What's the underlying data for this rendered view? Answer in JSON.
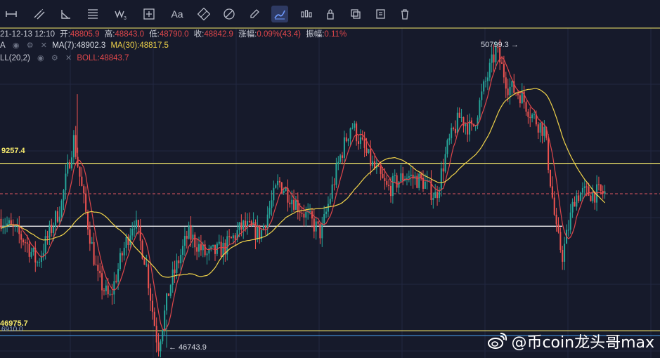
{
  "toolbar": {
    "tools": [
      {
        "name": "horizontal-line-tool-icon"
      },
      {
        "name": "parallel-channel-tool-icon"
      },
      {
        "name": "angle-tool-icon"
      },
      {
        "name": "fibonacci-tool-icon"
      },
      {
        "name": "wave-tool-icon",
        "label": "W3"
      },
      {
        "name": "crosshair-tool-icon"
      },
      {
        "name": "text-tool-icon",
        "label": "Aa"
      },
      {
        "name": "ruler-tool-icon"
      },
      {
        "name": "measure-tool-icon"
      },
      {
        "name": "pencil-tool-icon"
      },
      {
        "name": "brush-tool-icon"
      },
      {
        "name": "candles-tool-icon"
      },
      {
        "name": "lock-tool-icon"
      },
      {
        "name": "copy-tool-icon"
      },
      {
        "name": "edit-tool-icon"
      },
      {
        "name": "trash-tool-icon"
      }
    ]
  },
  "legend": {
    "datetime": "21-12-13 12:10",
    "open_label": "开:",
    "open": "48805.9",
    "high_label": "高:",
    "high": "48843.0",
    "low_label": "低:",
    "low": "48790.0",
    "close_label": "收:",
    "close": "48842.9",
    "change_label": "涨幅:",
    "change": "0.09%(43.4)",
    "amplitude_label": "振幅:",
    "amplitude": "0.11%",
    "ma_prefix": "A",
    "ma7": "MA(7):48902.3",
    "ma30": "MA(30):48817.5",
    "boll_name": "LL(20,2)",
    "boll": "BOLL:48843.7"
  },
  "annotations": {
    "high_marker": "50799.3 →",
    "low_marker": "← 46743.9",
    "level_upper": "9257.4",
    "level_lower": "46975.7",
    "level_lower_sub": "6910.0"
  },
  "watermark": {
    "text": "@币coin龙头哥max"
  },
  "colors": {
    "background": "#161a2b",
    "up": "#26a69a",
    "down": "#ef5350",
    "ma7": "#e0474b",
    "ma30": "#f0d34a",
    "yellow_level": "#f5e96b",
    "white_level": "#ffffff",
    "blue_level": "#4aa3f0",
    "price_line": "#e05561"
  },
  "chart_data": {
    "type": "candlestick",
    "instrument_note": "",
    "y_range": [
      46700,
      51100
    ],
    "levels": [
      49257.4,
      48400,
      46975.7,
      46910.0
    ],
    "current_price": 48842.9,
    "high": 50799.3,
    "low": 46743.9,
    "path_keypoints": [
      [
        0,
        48500
      ],
      [
        0.04,
        48200
      ],
      [
        0.06,
        47900
      ],
      [
        0.1,
        48700
      ],
      [
        0.12,
        49600
      ],
      [
        0.14,
        48600
      ],
      [
        0.16,
        47700
      ],
      [
        0.18,
        47400
      ],
      [
        0.2,
        48000
      ],
      [
        0.22,
        48500
      ],
      [
        0.24,
        47900
      ],
      [
        0.25,
        47300
      ],
      [
        0.26,
        46750
      ],
      [
        0.28,
        47600
      ],
      [
        0.31,
        48300
      ],
      [
        0.34,
        48000
      ],
      [
        0.37,
        48100
      ],
      [
        0.4,
        48400
      ],
      [
        0.43,
        48300
      ],
      [
        0.46,
        49000
      ],
      [
        0.5,
        48600
      ],
      [
        0.53,
        48300
      ],
      [
        0.56,
        49300
      ],
      [
        0.58,
        49800
      ],
      [
        0.61,
        49300
      ],
      [
        0.64,
        48900
      ],
      [
        0.67,
        49100
      ],
      [
        0.7,
        49000
      ],
      [
        0.72,
        48800
      ],
      [
        0.74,
        49500
      ],
      [
        0.76,
        49900
      ],
      [
        0.78,
        49700
      ],
      [
        0.8,
        50300
      ],
      [
        0.82,
        50800
      ],
      [
        0.84,
        50300
      ],
      [
        0.86,
        50200
      ],
      [
        0.88,
        49900
      ],
      [
        0.9,
        49700
      ],
      [
        0.92,
        48300
      ],
      [
        0.93,
        48000
      ],
      [
        0.95,
        48800
      ],
      [
        0.96,
        48850
      ]
    ]
  }
}
